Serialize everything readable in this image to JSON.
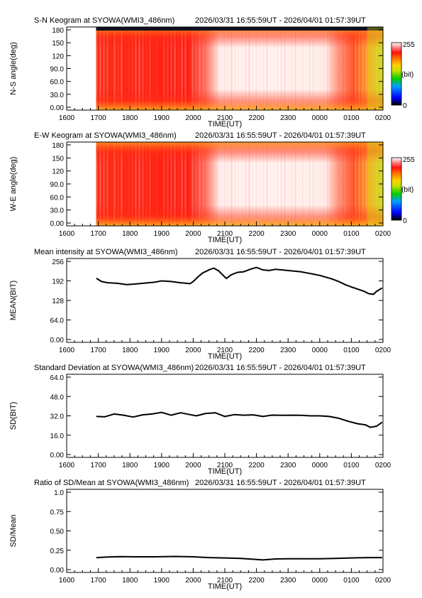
{
  "time_range": "2026/03/31 16:55:59UT - 2026/04/01 01:57:39UT",
  "time_axis": {
    "label": "TIME(UT)",
    "ticks": [
      "1600",
      "1700",
      "1800",
      "1900",
      "2000",
      "2100",
      "2200",
      "2300",
      "0000",
      "0100",
      "0200"
    ]
  },
  "colorbar": {
    "max_label": "255",
    "unit_label": "(bit)",
    "min_label": "0"
  },
  "chart_data": [
    {
      "type": "heatmap",
      "title": "S-N Keogram at SYOWA(WMI3_486nm)",
      "xlabel": "TIME(UT)",
      "ylabel": "N-S angle(deg)",
      "yticks": [
        "0.00",
        "30.0",
        "60.0",
        "90.0",
        "120",
        "150",
        "180"
      ],
      "ylim": [
        0,
        180
      ],
      "data_start": "16:56",
      "colorscale": "rainbow-white 0-255 bit",
      "intensity_profile": [
        {
          "time": "17:00",
          "max_level": "red"
        },
        {
          "time": "20:00",
          "max_level": "red"
        },
        {
          "time": "20:30",
          "max_level": "white"
        },
        {
          "time": "00:30",
          "max_level": "white"
        },
        {
          "time": "01:00",
          "max_level": "orange"
        },
        {
          "time": "01:57",
          "max_level": "yellow-green"
        }
      ]
    },
    {
      "type": "heatmap",
      "title": "E-W Keogram at SYOWA(WMI3_486nm)",
      "xlabel": "TIME(UT)",
      "ylabel": "W-E angle(deg)",
      "yticks": [
        "0.00",
        "30.0",
        "60.0",
        "90.0",
        "120",
        "150",
        "180"
      ],
      "ylim": [
        0,
        180
      ],
      "data_start": "16:56",
      "colorscale": "rainbow-white 0-255 bit"
    },
    {
      "type": "line",
      "title": "Mean intensity at SYOWA(WMI3_486nm)",
      "xlabel": "TIME(UT)",
      "ylabel": "MEAN(BIT)",
      "yticks": [
        "0.00",
        "64.0",
        "128",
        "192",
        "256"
      ],
      "ylim": [
        0,
        256
      ],
      "x_hours": [
        16.95,
        17.1,
        17.3,
        17.6,
        17.9,
        18.2,
        18.5,
        18.8,
        19.0,
        19.3,
        19.6,
        19.9,
        20.0,
        20.15,
        20.3,
        20.5,
        20.65,
        20.8,
        20.95,
        21.05,
        21.2,
        21.4,
        21.6,
        21.8,
        22.0,
        22.2,
        22.4,
        22.6,
        22.8,
        23.0,
        23.2,
        23.4,
        23.6,
        23.8,
        24.0,
        24.2,
        24.4,
        24.6,
        24.8,
        25.0,
        25.2,
        25.4,
        25.55,
        25.7,
        25.8,
        25.96
      ],
      "values": [
        200,
        190,
        186,
        184,
        180,
        182,
        185,
        188,
        192,
        190,
        186,
        183,
        190,
        205,
        218,
        228,
        234,
        225,
        210,
        200,
        212,
        220,
        222,
        230,
        236,
        228,
        226,
        230,
        228,
        226,
        224,
        222,
        218,
        214,
        210,
        204,
        198,
        190,
        180,
        172,
        165,
        158,
        150,
        148,
        158,
        168
      ]
    },
    {
      "type": "line",
      "title": "Standard Deviation at SYOWA(WMI3_486nm)",
      "xlabel": "TIME(UT)",
      "ylabel": "SD(BIT)",
      "yticks": [
        "0.00",
        "16.0",
        "32.0",
        "48.0",
        "64.0"
      ],
      "ylim": [
        0,
        64
      ],
      "x_hours": [
        16.95,
        17.2,
        17.5,
        17.8,
        18.1,
        18.4,
        18.7,
        19.0,
        19.3,
        19.6,
        19.9,
        20.1,
        20.4,
        20.7,
        21.0,
        21.3,
        21.6,
        21.9,
        22.2,
        22.5,
        22.8,
        23.1,
        23.4,
        23.7,
        24.0,
        24.3,
        24.6,
        24.9,
        25.2,
        25.45,
        25.6,
        25.8,
        25.96
      ],
      "values": [
        31.5,
        31.2,
        33.5,
        32.5,
        31.0,
        32.8,
        33.5,
        34.8,
        32.5,
        34.5,
        33.0,
        32.0,
        34.0,
        34.5,
        31.5,
        33.0,
        32.5,
        32.8,
        31.5,
        32.6,
        32.4,
        32.5,
        32.4,
        32.0,
        32.0,
        31.5,
        30.0,
        27.5,
        25.5,
        24.5,
        22.5,
        23.5,
        26.5
      ]
    },
    {
      "type": "line",
      "title": "Ratio of SD/Mean at SYOWA(WMI3_486nm)",
      "xlabel": "TIME(UT)",
      "ylabel": "SD/Mean",
      "yticks": [
        "0.00",
        "0.25",
        "0.50",
        "0.75",
        "1.0"
      ],
      "ylim": [
        0,
        1
      ],
      "x_hours": [
        16.95,
        17.3,
        17.7,
        18.2,
        18.8,
        19.4,
        20.0,
        20.5,
        21.0,
        21.5,
        22.0,
        22.2,
        22.6,
        23.0,
        23.5,
        24.0,
        24.5,
        25.0,
        25.5,
        25.96
      ],
      "values": [
        0.155,
        0.162,
        0.168,
        0.165,
        0.165,
        0.17,
        0.165,
        0.155,
        0.15,
        0.145,
        0.13,
        0.125,
        0.138,
        0.14,
        0.14,
        0.14,
        0.145,
        0.15,
        0.155,
        0.155
      ]
    }
  ]
}
